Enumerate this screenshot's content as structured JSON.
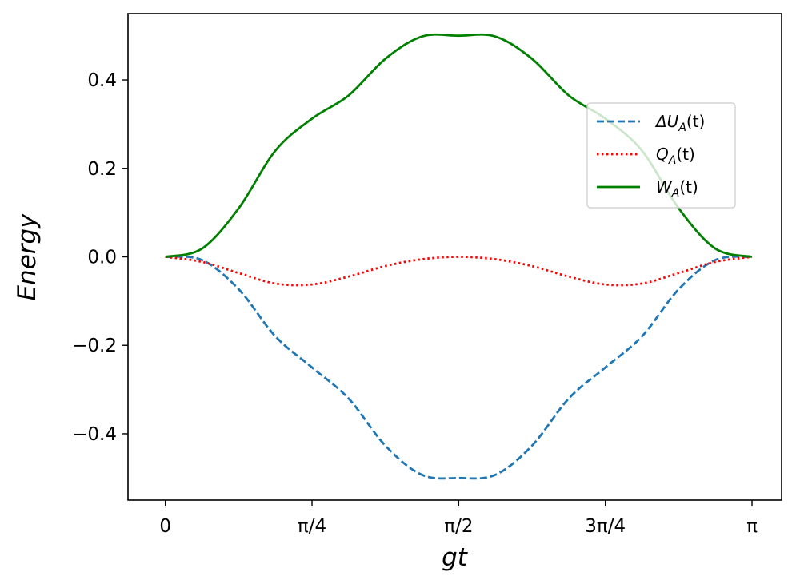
{
  "chart_data": {
    "type": "line",
    "title": "",
    "xlabel": "gt",
    "ylabel": "Energy",
    "xlim": [
      -0.2,
      3.3
    ],
    "ylim": [
      -0.55,
      0.55
    ],
    "x_ticks": [
      {
        "value": 0,
        "label": "0"
      },
      {
        "value": 0.7853981634,
        "label": "π/4"
      },
      {
        "value": 1.5707963268,
        "label": "π/2"
      },
      {
        "value": 2.3561944902,
        "label": "3π/4"
      },
      {
        "value": 3.1415926536,
        "label": "π"
      }
    ],
    "y_ticks": [
      {
        "value": 0.4,
        "label": "0.4"
      },
      {
        "value": 0.2,
        "label": "0.2"
      },
      {
        "value": 0.0,
        "label": "0.0"
      },
      {
        "value": -0.2,
        "label": "−0.2"
      },
      {
        "value": -0.4,
        "label": "−0.4"
      }
    ],
    "x": [
      0,
      0.1963,
      0.3927,
      0.589,
      0.7854,
      0.9817,
      1.1781,
      1.3744,
      1.5708,
      1.7671,
      1.9635,
      2.1598,
      2.3562,
      2.5525,
      2.7489,
      2.9452,
      3.1416
    ],
    "series": [
      {
        "name": "ΔU_A(t)",
        "legend_label": "ΔU",
        "legend_sub": "A",
        "legend_arg": "(t)",
        "color": "#1f77b4",
        "style": "dashed",
        "values": [
          0,
          -0.0072,
          -0.0732,
          -0.1796,
          -0.25,
          -0.3204,
          -0.4268,
          -0.4928,
          -0.5,
          -0.4928,
          -0.4268,
          -0.3204,
          -0.25,
          -0.1796,
          -0.0732,
          -0.0072,
          0
        ]
      },
      {
        "name": "Q_A(t)",
        "legend_label": "Q",
        "legend_sub": "A",
        "legend_arg": "(t)",
        "color": "#ff0000",
        "style": "dotted",
        "values": [
          0,
          -0.0114,
          -0.0366,
          -0.0604,
          -0.0625,
          -0.0446,
          -0.0209,
          -0.0054,
          0,
          -0.0054,
          -0.0209,
          -0.0446,
          -0.0625,
          -0.0604,
          -0.0366,
          -0.0114,
          0
        ]
      },
      {
        "name": "W_A(t)",
        "legend_label": "W",
        "legend_sub": "A",
        "legend_arg": "(t)",
        "color": "#008000",
        "style": "solid",
        "values": [
          0,
          0.0186,
          0.1098,
          0.24,
          0.3125,
          0.365,
          0.4477,
          0.4982,
          0.5,
          0.4982,
          0.4477,
          0.365,
          0.3125,
          0.24,
          0.1098,
          0.0186,
          0
        ]
      }
    ],
    "legend_position": "right"
  }
}
